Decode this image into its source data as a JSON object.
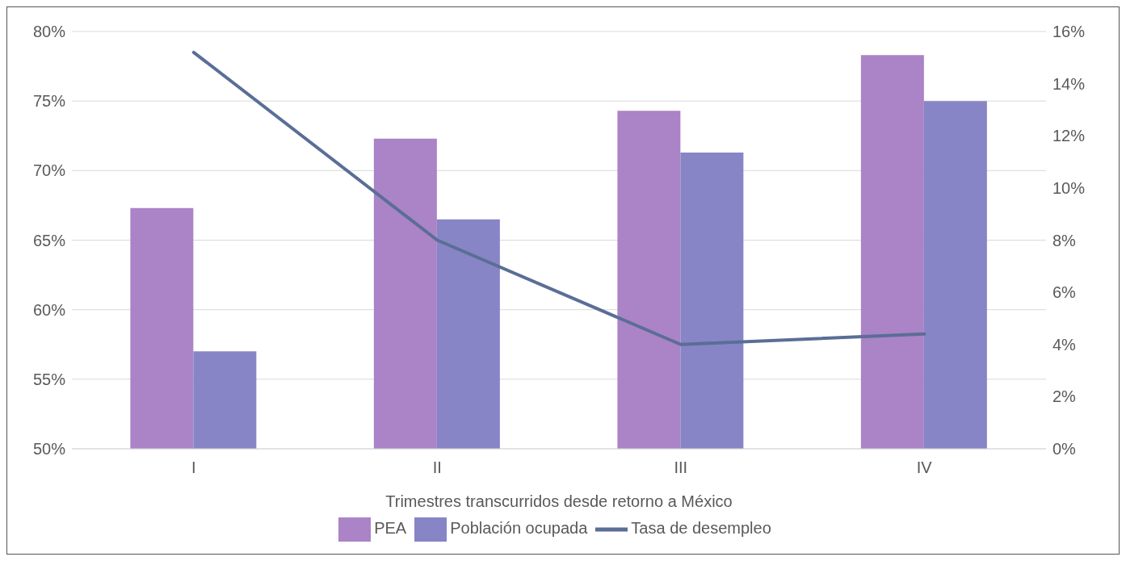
{
  "chart_data": {
    "type": "bar",
    "xlabel": "Trimestres transcurridos desde retorno a México",
    "categories": [
      "I",
      "II",
      "III",
      "IV"
    ],
    "series": [
      {
        "name": "PEA",
        "color": "#ab83c7",
        "values": [
          67.3,
          72.3,
          74.3,
          78.3
        ]
      },
      {
        "name": "Población ocupada",
        "color": "#8785c6",
        "values": [
          57.0,
          66.5,
          71.3,
          75.0
        ]
      },
      {
        "name": "Tasa de desempleo",
        "type": "line",
        "axis": "y2",
        "color": "#5a6e96",
        "values": [
          15.2,
          8.0,
          4.0,
          4.4
        ]
      }
    ],
    "ylim": [
      50,
      80
    ],
    "yticks": [
      {
        "value": 50,
        "label": "50%"
      },
      {
        "value": 55,
        "label": "55%"
      },
      {
        "value": 60,
        "label": "60%"
      },
      {
        "value": 65,
        "label": "65%"
      },
      {
        "value": 70,
        "label": "70%"
      },
      {
        "value": 75,
        "label": "75%"
      },
      {
        "value": 80,
        "label": "80%"
      }
    ],
    "y2lim": [
      0,
      16
    ],
    "y2ticks": [
      {
        "value": 0,
        "label": "0%"
      },
      {
        "value": 2,
        "label": "2%"
      },
      {
        "value": 4,
        "label": "4%"
      },
      {
        "value": 6,
        "label": "6%"
      },
      {
        "value": 8,
        "label": "8%"
      },
      {
        "value": 10,
        "label": "10%"
      },
      {
        "value": 12,
        "label": "12%"
      },
      {
        "value": 14,
        "label": "14%"
      },
      {
        "value": 16,
        "label": "16%"
      }
    ],
    "grid": "y",
    "legend": "bottom",
    "marker": "none",
    "line_style": "solid"
  }
}
